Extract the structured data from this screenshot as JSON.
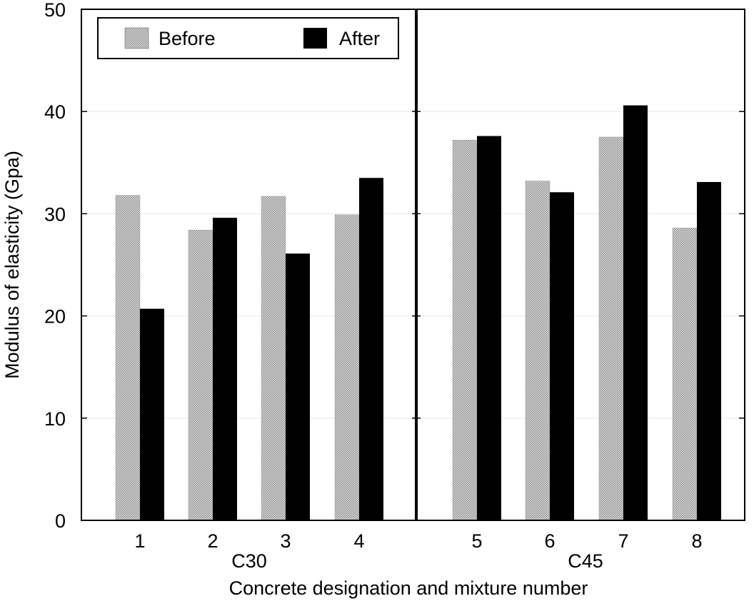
{
  "chart_data": {
    "type": "bar",
    "xlabel": "Concrete designation and mixture number",
    "ylabel": "Modulus of elasticity (Gpa)",
    "ylim": [
      0,
      50
    ],
    "yticks": [
      "0",
      "10",
      "20",
      "30",
      "40",
      "50"
    ],
    "grid": "horizontal",
    "legend_position": "top-left",
    "categories": [
      "1",
      "2",
      "3",
      "4",
      "5",
      "6",
      "7",
      "8"
    ],
    "groups": [
      {
        "label": "C30",
        "categories": [
          "1",
          "2",
          "3",
          "4"
        ]
      },
      {
        "label": "C45",
        "categories": [
          "5",
          "6",
          "7",
          "8"
        ]
      }
    ],
    "series": [
      {
        "name": "Before",
        "color": "#c8c8c8",
        "pattern": "checker",
        "values": [
          31.8,
          28.4,
          31.7,
          29.9,
          37.2,
          33.2,
          37.5,
          28.6
        ]
      },
      {
        "name": "After",
        "color": "#000000",
        "values": [
          20.7,
          29.6,
          26.1,
          33.5,
          37.6,
          32.1,
          40.6,
          33.1
        ]
      }
    ]
  }
}
